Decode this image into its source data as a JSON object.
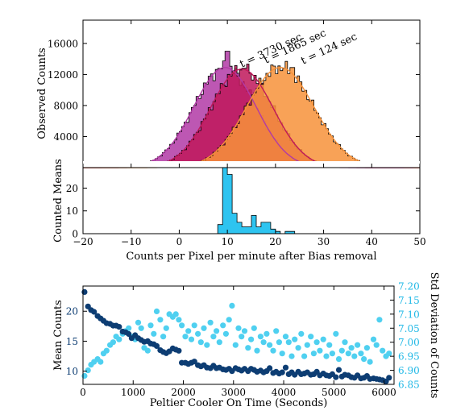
{
  "colors": {
    "t3730": "#b23aa6",
    "t1865": "#c0185a",
    "t124": "#f7923a",
    "counted": "#2ec4f0",
    "mean": "#0d3d73",
    "std": "#4fd0f0",
    "right_axis": "#1fb8e6"
  },
  "chart_data": [
    {
      "type": "histogram",
      "ylabel": "Observed Counts",
      "ylim": [
        0,
        19000
      ],
      "yticks": [
        4000,
        8000,
        12000,
        16000
      ],
      "xlim": [
        -20,
        50
      ],
      "series": [
        {
          "name": "t = 3730 sec",
          "color_key": "t3730",
          "mean": 9.5,
          "sd": 6.5,
          "peak": 12900,
          "spike": {
            "x": 10.0,
            "value": 15000
          }
        },
        {
          "name": "t = 1865 sec",
          "color_key": "t1865",
          "mean": 13.0,
          "sd": 6.5,
          "peak": 12700,
          "spike": {
            "x": 13.5,
            "value": 12800
          }
        },
        {
          "name": "t = 124 sec",
          "color_key": "t124",
          "mean": 21.0,
          "sd": 7.0,
          "peak": 12900,
          "spike": {
            "x": 23.5,
            "value": 12900
          }
        }
      ],
      "annotations": [
        "t = 3730 sec",
        "t = 1865 sec",
        "t = 124 sec"
      ],
      "grid": false
    },
    {
      "type": "histogram",
      "ylabel": "Counted Means",
      "xlabel": "Counts per Pixel per minute after Bias removal",
      "xlim": [
        -20,
        50
      ],
      "xticks": [
        -20,
        -10,
        0,
        10,
        20,
        30,
        40,
        50
      ],
      "ylim": [
        0,
        29
      ],
      "yticks": [
        0,
        10,
        20
      ],
      "bin_width": 1,
      "bins": [
        {
          "x0": 8,
          "count": 4
        },
        {
          "x0": 9,
          "count": 30
        },
        {
          "x0": 10,
          "count": 26
        },
        {
          "x0": 11,
          "count": 9
        },
        {
          "x0": 12,
          "count": 5
        },
        {
          "x0": 13,
          "count": 3
        },
        {
          "x0": 14,
          "count": 3
        },
        {
          "x0": 15,
          "count": 8
        },
        {
          "x0": 16,
          "count": 3
        },
        {
          "x0": 17,
          "count": 5
        },
        {
          "x0": 18,
          "count": 5
        },
        {
          "x0": 19,
          "count": 2
        },
        {
          "x0": 20,
          "count": 1
        },
        {
          "x0": 21,
          "count": 0
        },
        {
          "x0": 22,
          "count": 1
        },
        {
          "x0": 23,
          "count": 1
        }
      ],
      "color_key": "counted",
      "grid": false
    },
    {
      "type": "scatter",
      "xlabel": "Peltier Cooler On Time (Seconds)",
      "xlim": [
        0,
        6200
      ],
      "xticks": [
        0,
        1000,
        2000,
        3000,
        4000,
        5000,
        6000
      ],
      "ylabel": "Mean Counts",
      "ylim": [
        7.8,
        24.2
      ],
      "yticks": [
        10,
        15,
        20
      ],
      "ylabel_right": "Std Deviation of Counts",
      "ylim_right": [
        6.85,
        7.2
      ],
      "yticks_right": [
        "6.85",
        "6.90",
        "6.95",
        "7.00",
        "7.05",
        "7.10",
        "7.15",
        "7.20"
      ],
      "mean_series": {
        "axis": "left",
        "color_key": "mean",
        "x": [
          30,
          100,
          160,
          220,
          290,
          350,
          410,
          470,
          540,
          600,
          660,
          720,
          790,
          850,
          910,
          970,
          1040,
          1100,
          1160,
          1220,
          1290,
          1350,
          1410,
          1470,
          1540,
          1600,
          1660,
          1720,
          1790,
          1850,
          1910,
          1970,
          2040,
          2100,
          2160,
          2220,
          2290,
          2350,
          2410,
          2470,
          2540,
          2600,
          2660,
          2720,
          2790,
          2850,
          2910,
          2970,
          3040,
          3100,
          3160,
          3220,
          3290,
          3350,
          3410,
          3470,
          3540,
          3600,
          3660,
          3720,
          3790,
          3850,
          3910,
          3970,
          4040,
          4100,
          4160,
          4220,
          4290,
          4350,
          4410,
          4470,
          4540,
          4600,
          4660,
          4720,
          4790,
          4850,
          4910,
          4970,
          5040,
          5100,
          5160,
          5220,
          5290,
          5350,
          5410,
          5470,
          5540,
          5600,
          5660,
          5720,
          5790,
          5850,
          5910,
          5970,
          6040,
          6100
        ],
        "y": [
          23.2,
          20.8,
          20.2,
          19.9,
          19.2,
          18.8,
          18.4,
          18.0,
          17.9,
          17.6,
          17.6,
          17.4,
          16.6,
          16.5,
          16.2,
          15.5,
          16.0,
          15.5,
          15.2,
          14.9,
          15.0,
          14.6,
          14.5,
          14.2,
          13.5,
          13.2,
          13.0,
          13.3,
          13.8,
          13.6,
          13.4,
          11.4,
          11.4,
          11.2,
          11.4,
          11.6,
          11.0,
          10.8,
          11.0,
          10.6,
          10.5,
          10.9,
          10.5,
          10.6,
          10.3,
          10.2,
          10.4,
          10.0,
          10.5,
          10.3,
          10.1,
          10.4,
          10.0,
          10.4,
          10.2,
          9.9,
          10.1,
          9.8,
          10.0,
          10.5,
          9.7,
          9.9,
          9.6,
          9.8,
          10.6,
          9.5,
          9.8,
          9.4,
          9.9,
          9.5,
          9.6,
          9.8,
          9.4,
          9.5,
          9.9,
          9.3,
          9.6,
          9.3,
          9.2,
          9.5,
          9.0,
          10.2,
          9.1,
          9.4,
          9.3,
          9.0,
          8.9,
          9.3,
          8.8,
          8.9,
          9.2,
          8.7,
          8.8,
          8.7,
          8.6,
          8.5,
          8.3,
          8.9
        ]
      },
      "std_series": {
        "axis": "right",
        "color_key": "std",
        "x": [
          30,
          100,
          160,
          220,
          290,
          350,
          410,
          470,
          540,
          600,
          660,
          720,
          790,
          850,
          910,
          970,
          1040,
          1100,
          1160,
          1220,
          1290,
          1350,
          1410,
          1470,
          1540,
          1600,
          1660,
          1720,
          1790,
          1850,
          1910,
          1970,
          2040,
          2100,
          2160,
          2220,
          2290,
          2350,
          2410,
          2470,
          2540,
          2600,
          2660,
          2720,
          2790,
          2850,
          2910,
          2970,
          3040,
          3100,
          3160,
          3220,
          3290,
          3350,
          3410,
          3470,
          3540,
          3600,
          3660,
          3720,
          3790,
          3850,
          3910,
          3970,
          4040,
          4100,
          4160,
          4220,
          4290,
          4350,
          4410,
          4470,
          4540,
          4600,
          4660,
          4720,
          4790,
          4850,
          4910,
          4970,
          5040,
          5100,
          5160,
          5220,
          5290,
          5350,
          5410,
          5470,
          5540,
          5600,
          5660,
          5720,
          5790,
          5850,
          5910,
          5970,
          6040,
          6100
        ],
        "y": [
          6.88,
          6.9,
          6.92,
          6.93,
          6.94,
          6.93,
          6.96,
          6.97,
          6.99,
          7.0,
          7.02,
          7.01,
          7.03,
          7.04,
          7.05,
          7.02,
          7.01,
          7.07,
          7.05,
          6.98,
          6.97,
          7.06,
          7.03,
          7.11,
          7.08,
          7.02,
          7.05,
          7.1,
          7.09,
          7.1,
          7.08,
          7.06,
          7.02,
          7.04,
          7.01,
          7.06,
          7.03,
          7.0,
          7.05,
          6.99,
          7.07,
          7.02,
          7.04,
          7.0,
          7.06,
          7.03,
          7.08,
          7.13,
          6.99,
          7.05,
          7.02,
          7.04,
          6.98,
          7.01,
          7.05,
          6.97,
          7.02,
          7.0,
          7.03,
          6.99,
          6.97,
          7.04,
          7.0,
          6.96,
          7.02,
          7.0,
          6.95,
          7.01,
          6.98,
          7.03,
          6.95,
          6.99,
          7.02,
          6.96,
          7.0,
          6.97,
          7.01,
          6.95,
          6.99,
          6.96,
          7.03,
          6.94,
          6.97,
          7.0,
          6.96,
          6.98,
          6.95,
          6.99,
          6.96,
          6.94,
          6.98,
          6.93,
          7.01,
          6.99,
          7.08,
          6.97,
          6.95,
          6.96
        ]
      },
      "grid": false
    }
  ]
}
